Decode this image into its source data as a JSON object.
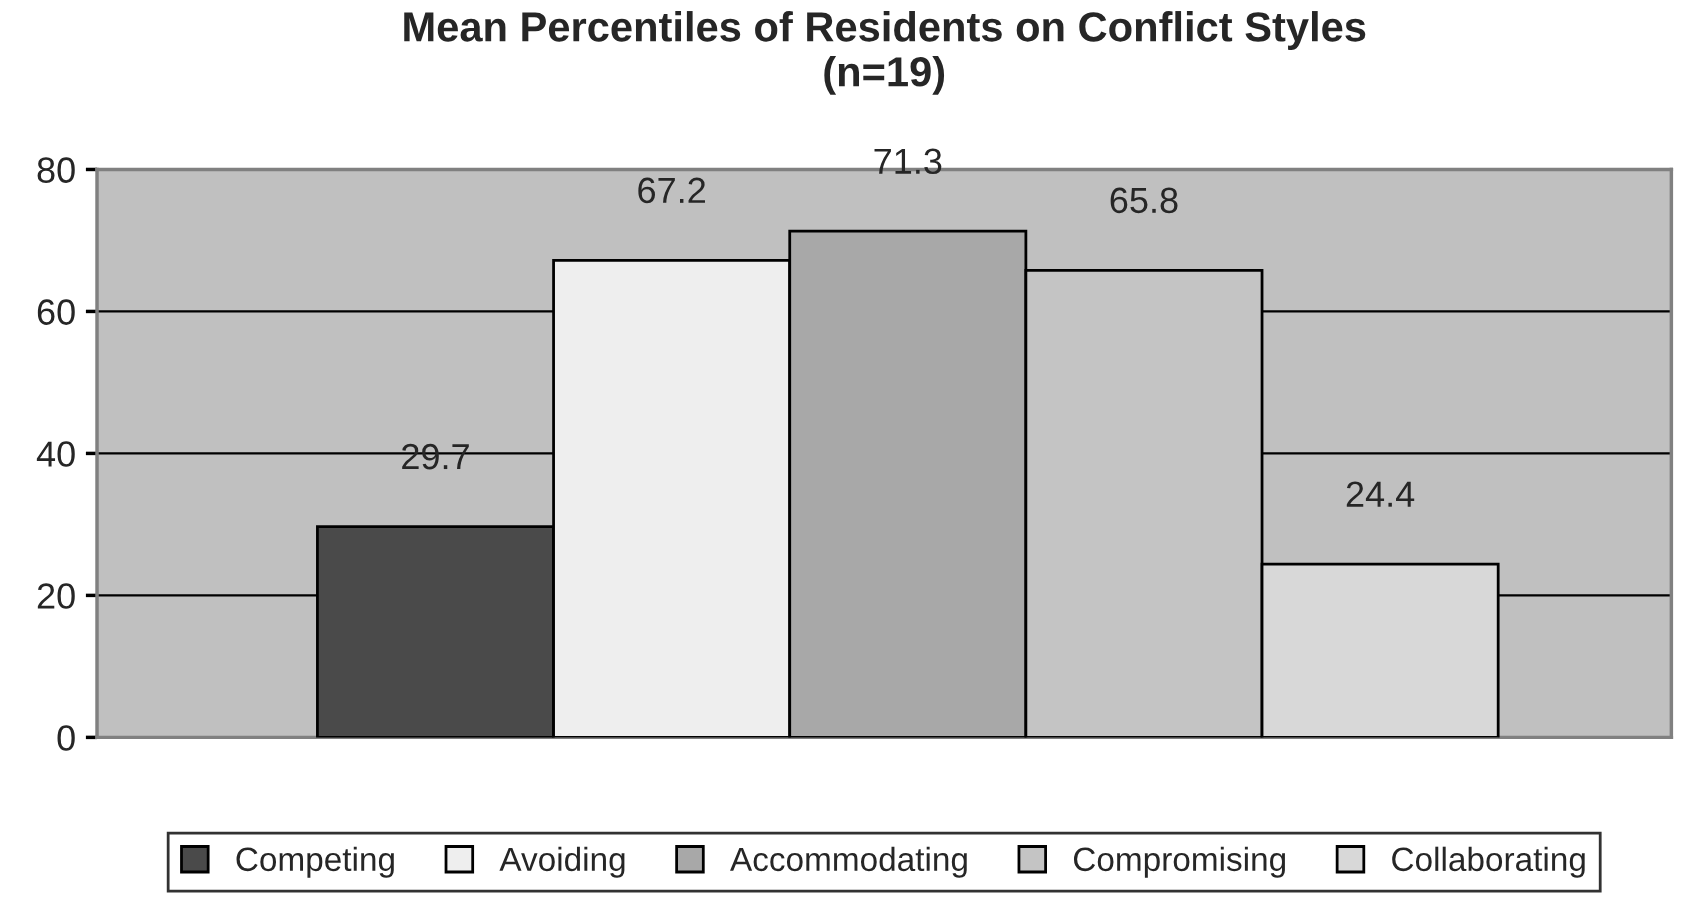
{
  "chart_data": {
    "type": "bar",
    "title": "Mean Percentiles of Residents on Conflict Styles\n(n=19)",
    "categories": [
      null
    ],
    "series": [
      {
        "name": "Competing",
        "color": "#4a4a4a",
        "values": [
          29.7
        ]
      },
      {
        "name": "Avoiding",
        "color": "#eeeeee",
        "values": [
          67.2
        ]
      },
      {
        "name": "Accommodating",
        "color": "#a8a8a8",
        "values": [
          71.3
        ]
      },
      {
        "name": "Compromising",
        "color": "#c4c4c4",
        "values": [
          65.8
        ]
      },
      {
        "name": "Collaborating",
        "color": "#d8d8d8",
        "values": [
          24.4
        ]
      }
    ],
    "ylim": [
      0,
      80
    ],
    "yticks": [
      0,
      20,
      40,
      60,
      80
    ],
    "grid": "y",
    "data_labels": true,
    "legend": "bottom"
  }
}
